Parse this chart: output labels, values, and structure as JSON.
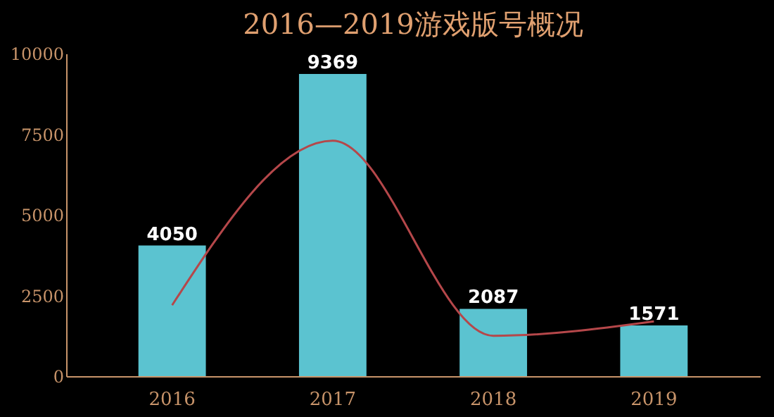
{
  "chart_data": {
    "type": "bar",
    "title": "2016—2019游戏版号概况",
    "categories": [
      "2016",
      "2017",
      "2018",
      "2019"
    ],
    "series": [
      {
        "color": "#5bc3d0",
        "values": [
          4050,
          9369,
          2087,
          1571
        ],
        "value_labels": [
          "4050",
          "9369",
          "2087",
          "1571"
        ]
      },
      {
        "type": "line",
        "color": "#b5474a",
        "values": [
          2200,
          7300,
          1250,
          1700
        ]
      }
    ],
    "ylim": [
      0,
      10000
    ],
    "yticks": [
      0,
      2500,
      5000,
      7500,
      10000
    ],
    "grid": false,
    "marker": "none"
  }
}
